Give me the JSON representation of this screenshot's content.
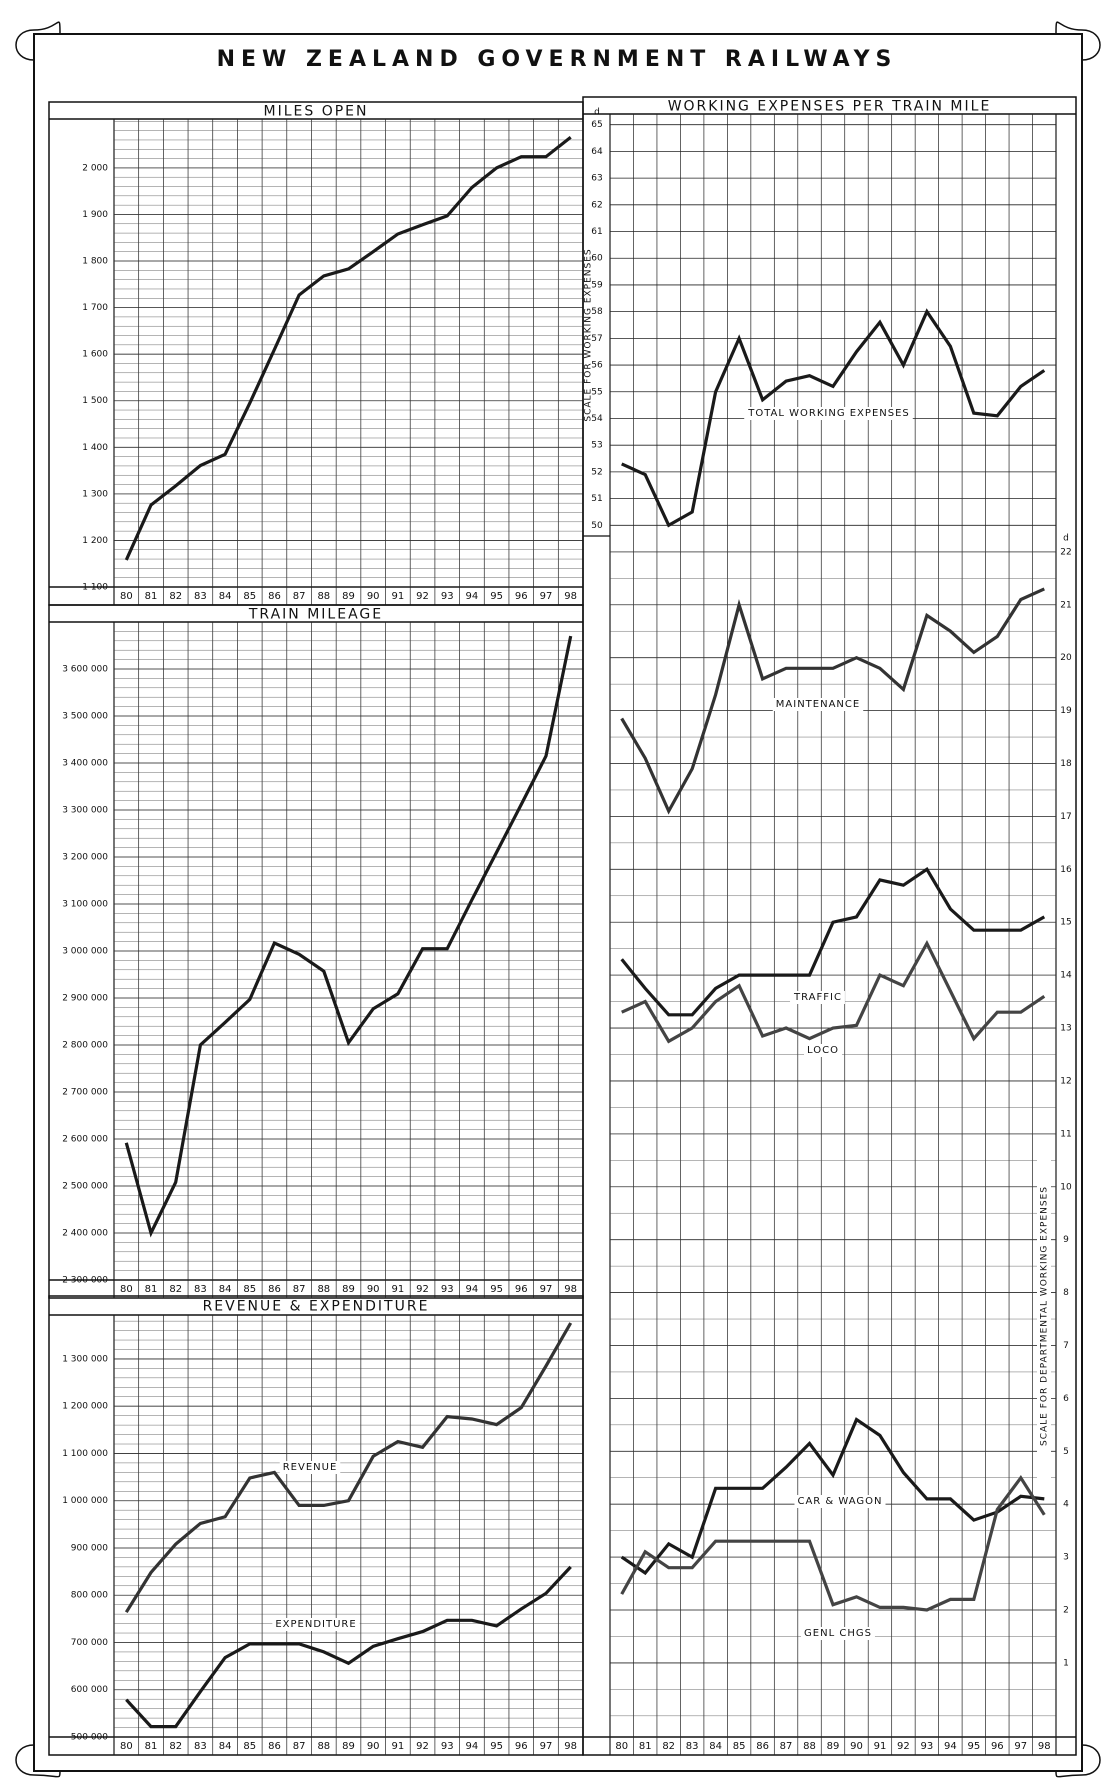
{
  "title": "NEW ZEALAND GOVERNMENT RAILWAYS",
  "chart_data": [
    {
      "type": "line",
      "title": "MILES OPEN",
      "categories": [
        "80",
        "81",
        "82",
        "83",
        "84",
        "85",
        "86",
        "87",
        "88",
        "89",
        "90",
        "91",
        "92",
        "93",
        "94",
        "95",
        "96",
        "97",
        "98"
      ],
      "values": [
        1158,
        1276,
        1317,
        1361,
        1385,
        1495,
        1610,
        1727,
        1768,
        1783,
        1820,
        1858,
        1878,
        1897,
        1958,
        2000,
        2024,
        2024,
        2066
      ],
      "color": "#1a1a1a",
      "ylim": [
        1100,
        2105
      ],
      "yticks": [
        {
          "value": 1100,
          "label": "1 100"
        },
        {
          "value": 1200,
          "label": "1 200"
        },
        {
          "value": 1300,
          "label": "1 300"
        },
        {
          "value": 1400,
          "label": "1 400"
        },
        {
          "value": 1500,
          "label": "1 500"
        },
        {
          "value": 1600,
          "label": "1 600"
        },
        {
          "value": 1700,
          "label": "1 700"
        },
        {
          "value": 1800,
          "label": "1 800"
        },
        {
          "value": 1900,
          "label": "1 900"
        },
        {
          "value": 2000,
          "label": "2 000"
        }
      ],
      "grid": true
    },
    {
      "type": "line",
      "title": "TRAIN MILEAGE",
      "categories": [
        "80",
        "81",
        "82",
        "83",
        "84",
        "85",
        "86",
        "87",
        "88",
        "89",
        "90",
        "91",
        "92",
        "93",
        "94",
        "95",
        "96",
        "97",
        "98"
      ],
      "values": [
        2592000,
        2400000,
        2508000,
        2800000,
        2848000,
        2897000,
        3017000,
        2993000,
        2957000,
        2805000,
        2877000,
        2909000,
        3005000,
        3005000,
        3109000,
        3210000,
        3312000,
        3415000,
        3670000
      ],
      "color": "#1a1a1a",
      "ylim": [
        2300000,
        3700000
      ],
      "yticks": [
        {
          "value": 2300000,
          "label": "2 300 000"
        },
        {
          "value": 2400000,
          "label": "2 400 000"
        },
        {
          "value": 2500000,
          "label": "2 500 000"
        },
        {
          "value": 2600000,
          "label": "2 600 000"
        },
        {
          "value": 2700000,
          "label": "2 700 000"
        },
        {
          "value": 2800000,
          "label": "2 800 000"
        },
        {
          "value": 2900000,
          "label": "2 900 000"
        },
        {
          "value": 3000000,
          "label": "3 000 000"
        },
        {
          "value": 3100000,
          "label": "3 100 000"
        },
        {
          "value": 3200000,
          "label": "3 200 000"
        },
        {
          "value": 3300000,
          "label": "3 300 000"
        },
        {
          "value": 3400000,
          "label": "3 400 000"
        },
        {
          "value": 3500000,
          "label": "3 500 000"
        },
        {
          "value": 3600000,
          "label": "3 600 000"
        }
      ],
      "grid": true
    },
    {
      "type": "line",
      "title": "REVENUE & EXPENDITURE",
      "categories": [
        "80",
        "81",
        "82",
        "83",
        "84",
        "85",
        "86",
        "87",
        "88",
        "89",
        "90",
        "91",
        "92",
        "93",
        "94",
        "95",
        "96",
        "97",
        "98"
      ],
      "series": [
        {
          "name": "REVENUE",
          "color": "#333333",
          "values": [
            764000,
            848000,
            908000,
            952000,
            966000,
            1048000,
            1060000,
            990000,
            990000,
            1000000,
            1094000,
            1125000,
            1113000,
            1178000,
            1173000,
            1161000,
            1197000,
            1285000,
            1376000
          ]
        },
        {
          "name": "EXPENDITURE",
          "color": "#1a1a1a",
          "values": [
            579000,
            522000,
            522000,
            596000,
            668000,
            697000,
            697000,
            697000,
            680000,
            656000,
            692000,
            708000,
            723000,
            747000,
            747000,
            735000,
            771000,
            804000,
            860000
          ]
        }
      ],
      "ylim": [
        500000,
        1393000
      ],
      "yticks": [
        {
          "value": 500000,
          "label": "500 000"
        },
        {
          "value": 600000,
          "label": "600 000"
        },
        {
          "value": 700000,
          "label": "700 000"
        },
        {
          "value": 800000,
          "label": "800 000"
        },
        {
          "value": 900000,
          "label": "900 000"
        },
        {
          "value": 1000000,
          "label": "1 000 000"
        },
        {
          "value": 1100000,
          "label": "1 100 000"
        },
        {
          "value": 1200000,
          "label": "1 200 000"
        },
        {
          "value": 1300000,
          "label": "1 300 000"
        }
      ],
      "grid": true
    },
    {
      "type": "line",
      "title": "WORKING EXPENSES PER TRAIN MILE",
      "categories": [
        "80",
        "81",
        "82",
        "83",
        "84",
        "85",
        "86",
        "87",
        "88",
        "89",
        "90",
        "91",
        "92",
        "93",
        "94",
        "95",
        "96",
        "97",
        "98"
      ],
      "ylabel": "SCALE FOR WORKING EXPENSES",
      "y_unit": "d",
      "y2label": "SCALE FOR DEPARTMENTAL WORKING EXPENSES",
      "y2_unit": "d",
      "series": [
        {
          "name": "TOTAL WORKING EXPENSES",
          "color": "#1a1a1a",
          "values": [
            52.3,
            51.9,
            50.0,
            50.5,
            55.0,
            57.0,
            54.7,
            55.4,
            55.6,
            55.2,
            56.5,
            57.6,
            56.0,
            58.0,
            56.7,
            54.2,
            54.1,
            55.2,
            55.8
          ]
        },
        {
          "name": "MAINTENANCE",
          "color": "#333333",
          "axis": "y2",
          "values": [
            18.85,
            18.1,
            17.1,
            17.9,
            19.3,
            21.0,
            19.6,
            19.8,
            19.8,
            19.8,
            20.0,
            19.8,
            19.4,
            20.8,
            20.5,
            20.1,
            20.4,
            21.1,
            21.3
          ]
        },
        {
          "name": "TRAFFIC",
          "color": "#1a1a1a",
          "axis": "y2",
          "values": [
            14.3,
            13.75,
            13.25,
            13.25,
            13.75,
            14.0,
            14.0,
            14.0,
            14.0,
            15.0,
            15.1,
            15.8,
            15.7,
            16.0,
            15.25,
            14.85,
            14.85,
            14.85,
            15.1
          ]
        },
        {
          "name": "LOCO",
          "color": "#444444",
          "axis": "y2",
          "values": [
            13.3,
            13.5,
            12.75,
            13.0,
            13.5,
            13.8,
            12.85,
            13.0,
            12.8,
            13.0,
            13.05,
            14.0,
            13.8,
            14.6,
            13.7,
            12.8,
            13.3,
            13.3,
            13.6
          ]
        },
        {
          "name": "CAR & WAGON",
          "color": "#1a1a1a",
          "axis": "y2",
          "values": [
            3.0,
            2.7,
            3.25,
            3.0,
            4.3,
            4.3,
            4.3,
            4.7,
            5.15,
            4.55,
            5.6,
            5.3,
            4.6,
            4.1,
            4.1,
            3.7,
            3.85,
            4.15,
            4.1
          ]
        },
        {
          "name": "GENL CHGS",
          "color": "#444444",
          "axis": "y2",
          "values": [
            2.3,
            3.1,
            2.8,
            2.8,
            3.3,
            3.3,
            3.3,
            3.3,
            3.3,
            2.1,
            2.25,
            2.05,
            2.05,
            2.0,
            2.2,
            2.2,
            3.9,
            4.5,
            3.8
          ]
        }
      ],
      "ylim": [
        49.6,
        65.4
      ],
      "yticks": [
        50,
        51,
        52,
        53,
        54,
        55,
        56,
        57,
        58,
        59,
        60,
        61,
        62,
        63,
        64,
        65
      ],
      "y2lim": [
        -0.4,
        22.3
      ],
      "y2ticks": [
        1,
        2,
        3,
        4,
        5,
        6,
        7,
        8,
        9,
        10,
        11,
        12,
        13,
        14,
        15,
        16,
        17,
        18,
        19,
        20,
        21,
        22
      ],
      "grid": true
    }
  ]
}
